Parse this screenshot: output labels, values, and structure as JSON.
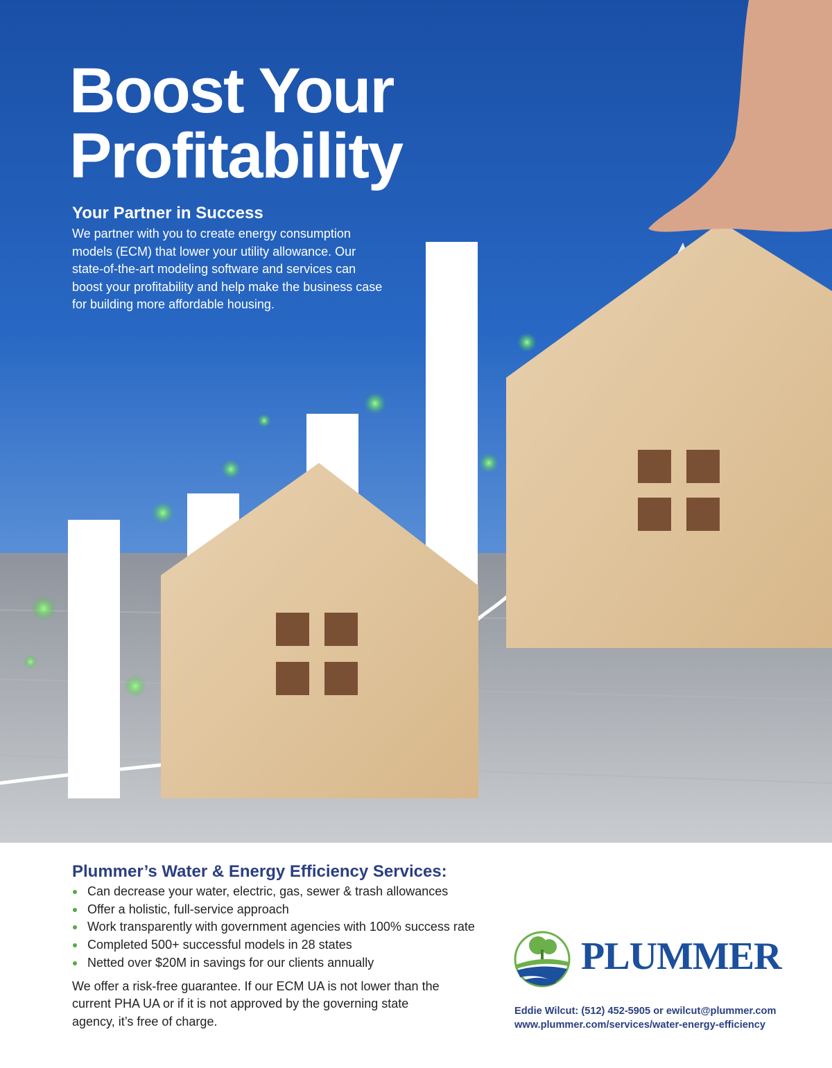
{
  "hero": {
    "title_line1": "Boost Your",
    "title_line2": "Profitability",
    "subtitle": "Your Partner in Success",
    "intro": "We partner with you to create energy consumption models (ECM) that lower your utility allowance. Our state-of-the-art modeling software and services can boost your profitability and help make the business case for building more affordable housing."
  },
  "services": {
    "heading": "Plummer’s Water & Energy Efficiency Services:",
    "bullets": [
      "Can decrease your water, electric, gas, sewer & trash allowances",
      "Offer a holistic, full-service approach",
      "Work transparently with government agencies with 100% success rate",
      "Completed 500+ successful models in 28 states",
      "Netted over $20M in savings for our clients annually"
    ],
    "guarantee": "We offer a risk-free guarantee. If our ECM UA is not lower than the current PHA UA or if it is not approved by the governing state agency, it’s free of charge."
  },
  "brand": {
    "name": "PLUMMER",
    "contact_line": "Eddie Wilcut: (512) 452-5905 or ewilcut@plummer.com",
    "website": "www.plummer.com/services/water-energy-efficiency"
  },
  "colors": {
    "sky": "#1f5cb8",
    "brand_blue": "#1c4f9c",
    "heading_navy": "#2b3f80",
    "bullet_green": "#5ba64b"
  }
}
